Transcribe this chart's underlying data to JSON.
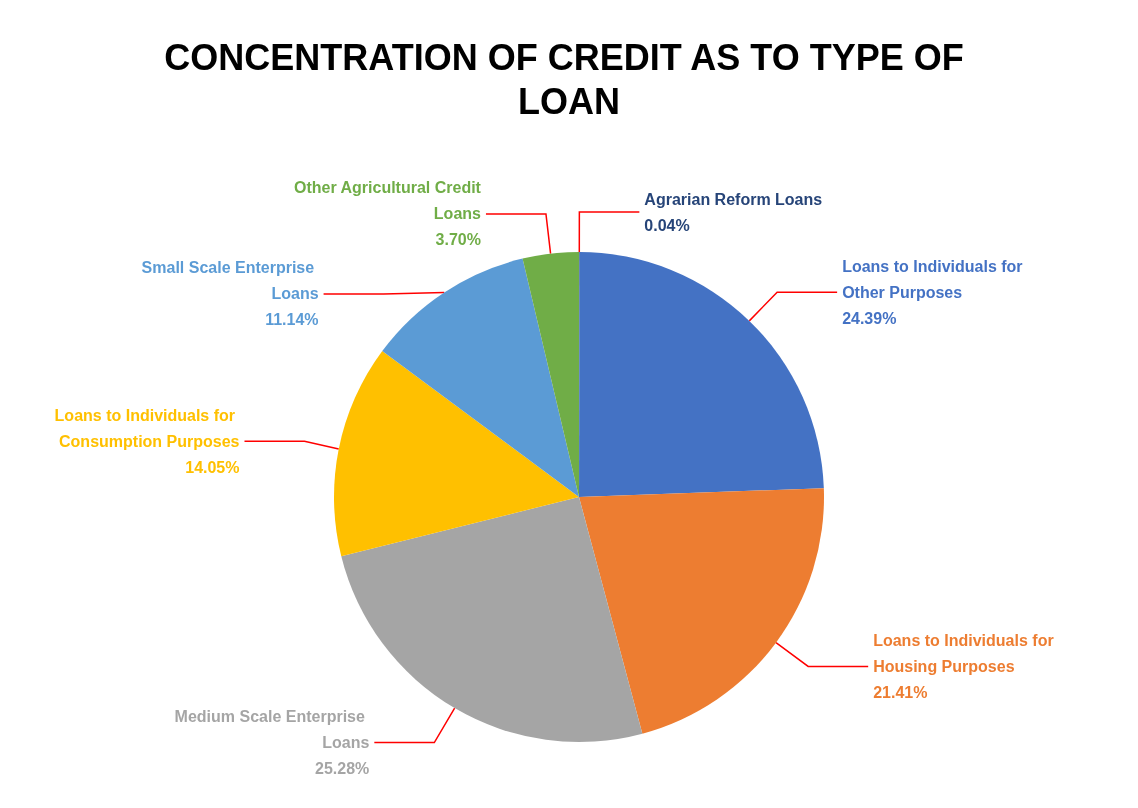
{
  "chart_data": {
    "type": "pie",
    "title": "CONCENTRATION OF CREDIT AS TO TYPE OF LOAN",
    "categories": [
      "Agrarian Reform Loans",
      "Loans to Individuals for Other Purposes",
      "Loans to Individuals for Housing Purposes",
      "Medium Scale Enterprise Loans",
      "Loans to Individuals for Consumption Purposes",
      "Small Scale Enterprise Loans",
      "Other Agricultural Credit Loans"
    ],
    "values": [
      0.04,
      24.39,
      21.41,
      25.28,
      14.05,
      11.14,
      3.7
    ],
    "value_labels": [
      "0.04%",
      "24.39%",
      "21.41%",
      "25.28%",
      "14.05%",
      "11.14%",
      "3.70%"
    ],
    "colors": [
      "#264478",
      "#4472c4",
      "#ed7d31",
      "#a5a5a5",
      "#ffc000",
      "#5b9bd5",
      "#70ad47"
    ]
  }
}
